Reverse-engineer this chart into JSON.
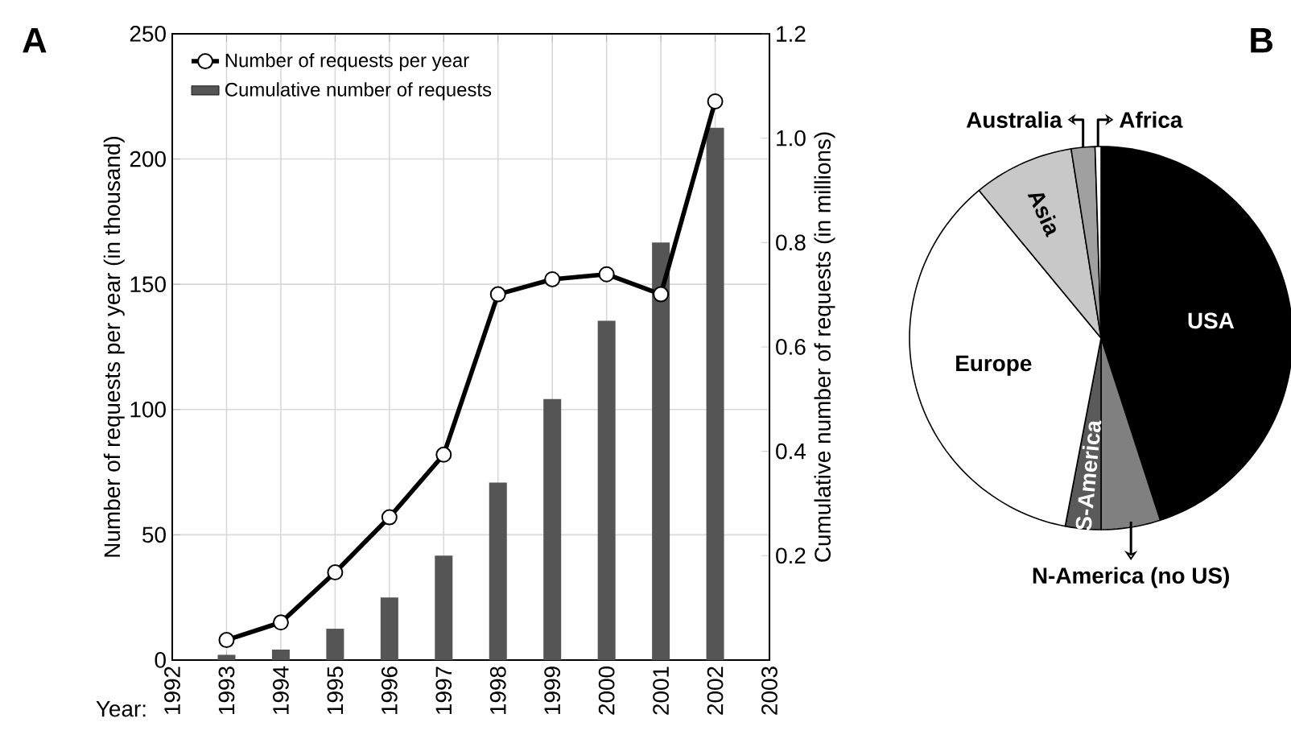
{
  "chart_data": [
    {
      "type": "bar",
      "annotations": [
        "A"
      ],
      "xlabel": "Year:",
      "ylabel": "Number of requests per year (in thousand)",
      "y2label": "Cumulative number of requests (in millions)",
      "x": [
        1993,
        1994,
        1995,
        1996,
        1997,
        1998,
        1999,
        2000,
        2001,
        2002
      ],
      "xlim": [
        1992,
        2003
      ],
      "xticks": [
        1992,
        1993,
        1994,
        1995,
        1996,
        1997,
        1998,
        1999,
        2000,
        2001,
        2002,
        2003
      ],
      "ylim": [
        0,
        250
      ],
      "yticks": [
        0,
        50,
        100,
        150,
        200,
        250
      ],
      "y2lim": [
        0,
        1.2
      ],
      "y2ticks": [
        0.2,
        0.4,
        0.6,
        0.8,
        {
          "value": 1,
          "label": "1.0"
        },
        1.2
      ],
      "grid": true,
      "legend": "top left",
      "series": [
        {
          "name": "Number of requests per year",
          "type": "line",
          "color": "#000000",
          "marker": "circle",
          "line_style": "solid",
          "values": [
            8,
            15,
            35,
            57,
            82,
            146,
            152,
            154,
            146,
            223
          ]
        },
        {
          "name": "Cumulative number of requests",
          "type": "bar",
          "axis": "y2",
          "color": "#555555",
          "values": [
            0.01,
            0.02,
            0.06,
            0.12,
            0.2,
            0.34,
            0.5,
            0.65,
            0.8,
            1.02
          ]
        }
      ]
    },
    {
      "type": "pie",
      "annotations": [
        "B"
      ],
      "categories": [
        "USA",
        "N-America (no US)",
        "S-America",
        "Europe",
        "Asia",
        "Australia",
        "Africa"
      ],
      "values": [
        45,
        5,
        3,
        36,
        8.5,
        2,
        0.5
      ],
      "colors": [
        "#000000",
        "#808080",
        "#5a5a5a",
        "#ffffff",
        "#c8c8c8",
        "#a0a0a0",
        "#ffffff"
      ]
    }
  ]
}
